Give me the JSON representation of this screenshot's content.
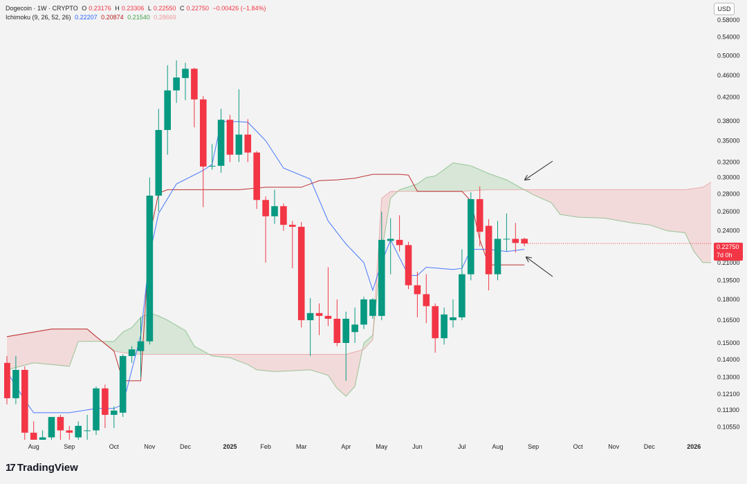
{
  "header": {
    "symbol": "Dogecoin · 1W · CRYPTO",
    "open_label": "O",
    "open": "0.23176",
    "high_label": "H",
    "high": "0.23306",
    "low_label": "L",
    "low": "0.22550",
    "close_label": "C",
    "close": "0.22750",
    "change": "−0.00426 (−1.84%)",
    "indicator_name": "Ichimoku (9, 26, 52, 26)",
    "indicator_values": [
      "0.22207",
      "0.20874",
      "0.21540",
      "0.28669"
    ]
  },
  "currency": "USD",
  "price_label": {
    "price": "0.22750",
    "countdown": "7d 0h"
  },
  "branding": {
    "logo_text": "TradingView",
    "logo_mark": "17"
  },
  "colors": {
    "up": "#089981",
    "down": "#f23645",
    "tenkan": "#2962ff",
    "kijun": "#b71c1c",
    "cloud_bull": "#43a047",
    "cloud_bear": "#ef9a9a"
  },
  "chart_data": {
    "type": "candlestick",
    "timeframe": "1W",
    "y_scale": "log",
    "ylim": [
      0.1,
      0.62
    ],
    "y_ticks": [
      0.58,
      0.54,
      0.5,
      0.46,
      0.42,
      0.38,
      0.35,
      0.32,
      0.3,
      0.28,
      0.26,
      0.24,
      0.21,
      0.195,
      0.18,
      0.165,
      0.15,
      0.14,
      0.13,
      0.121,
      0.1133,
      0.1055
    ],
    "y_tick_labels": [
      "0.58000",
      "0.54000",
      "0.50000",
      "0.46000",
      "0.42000",
      "0.38000",
      "0.35000",
      "0.32000",
      "0.30000",
      "0.28000",
      "0.26000",
      "0.24000",
      "0.21000",
      "0.19500",
      "0.18000",
      "0.16500",
      "0.15000",
      "0.14000",
      "0.13000",
      "0.12100",
      "0.11300",
      "0.10550"
    ],
    "x_ticks": [
      {
        "i": 3,
        "label": "Aug"
      },
      {
        "i": 7,
        "label": "Sep"
      },
      {
        "i": 12,
        "label": "Oct"
      },
      {
        "i": 16,
        "label": "Nov"
      },
      {
        "i": 20,
        "label": "Dec"
      },
      {
        "i": 25,
        "label": "2025",
        "bold": true
      },
      {
        "i": 29,
        "label": "Feb"
      },
      {
        "i": 33,
        "label": "Mar"
      },
      {
        "i": 38,
        "label": "Apr"
      },
      {
        "i": 42,
        "label": "May"
      },
      {
        "i": 46,
        "label": "Jun"
      },
      {
        "i": 51,
        "label": "Jul"
      },
      {
        "i": 55,
        "label": "Aug"
      },
      {
        "i": 59,
        "label": "Sep"
      },
      {
        "i": 64,
        "label": "Oct"
      },
      {
        "i": 68,
        "label": "Nov"
      },
      {
        "i": 72,
        "label": "Dec"
      },
      {
        "i": 77,
        "label": "2026",
        "bold": true
      }
    ],
    "candles": [
      {
        "o": 0.138,
        "h": 0.142,
        "l": 0.116,
        "c": 0.119
      },
      {
        "o": 0.119,
        "h": 0.142,
        "l": 0.116,
        "c": 0.134
      },
      {
        "o": 0.134,
        "h": 0.136,
        "l": 0.098,
        "c": 0.103
      },
      {
        "o": 0.103,
        "h": 0.108,
        "l": 0.09,
        "c": 0.096
      },
      {
        "o": 0.096,
        "h": 0.104,
        "l": 0.089,
        "c": 0.101
      },
      {
        "o": 0.101,
        "h": 0.11,
        "l": 0.098,
        "c": 0.11
      },
      {
        "o": 0.11,
        "h": 0.111,
        "l": 0.1,
        "c": 0.104
      },
      {
        "o": 0.104,
        "h": 0.106,
        "l": 0.099,
        "c": 0.103
      },
      {
        "o": 0.101,
        "h": 0.108,
        "l": 0.098,
        "c": 0.106
      },
      {
        "o": 0.104,
        "h": 0.111,
        "l": 0.1,
        "c": 0.104
      },
      {
        "o": 0.104,
        "h": 0.125,
        "l": 0.102,
        "c": 0.124
      },
      {
        "o": 0.124,
        "h": 0.126,
        "l": 0.105,
        "c": 0.111
      },
      {
        "o": 0.111,
        "h": 0.115,
        "l": 0.105,
        "c": 0.113
      },
      {
        "o": 0.112,
        "h": 0.143,
        "l": 0.11,
        "c": 0.142
      },
      {
        "o": 0.142,
        "h": 0.148,
        "l": 0.138,
        "c": 0.146
      },
      {
        "o": 0.145,
        "h": 0.167,
        "l": 0.13,
        "c": 0.151
      },
      {
        "o": 0.151,
        "h": 0.3,
        "l": 0.149,
        "c": 0.278
      },
      {
        "o": 0.278,
        "h": 0.4,
        "l": 0.26,
        "c": 0.366
      },
      {
        "o": 0.366,
        "h": 0.48,
        "l": 0.33,
        "c": 0.432
      },
      {
        "o": 0.432,
        "h": 0.49,
        "l": 0.41,
        "c": 0.456
      },
      {
        "o": 0.455,
        "h": 0.485,
        "l": 0.415,
        "c": 0.473
      },
      {
        "o": 0.473,
        "h": 0.475,
        "l": 0.37,
        "c": 0.416
      },
      {
        "o": 0.416,
        "h": 0.422,
        "l": 0.265,
        "c": 0.314
      },
      {
        "o": 0.314,
        "h": 0.345,
        "l": 0.31,
        "c": 0.315
      },
      {
        "o": 0.315,
        "h": 0.4,
        "l": 0.306,
        "c": 0.382
      },
      {
        "o": 0.382,
        "h": 0.39,
        "l": 0.32,
        "c": 0.33
      },
      {
        "o": 0.33,
        "h": 0.434,
        "l": 0.32,
        "c": 0.359
      },
      {
        "o": 0.359,
        "h": 0.383,
        "l": 0.32,
        "c": 0.333
      },
      {
        "o": 0.333,
        "h": 0.335,
        "l": 0.263,
        "c": 0.273
      },
      {
        "o": 0.273,
        "h": 0.277,
        "l": 0.21,
        "c": 0.255
      },
      {
        "o": 0.255,
        "h": 0.285,
        "l": 0.247,
        "c": 0.266
      },
      {
        "o": 0.266,
        "h": 0.269,
        "l": 0.24,
        "c": 0.246
      },
      {
        "o": 0.246,
        "h": 0.25,
        "l": 0.205,
        "c": 0.244
      },
      {
        "o": 0.244,
        "h": 0.249,
        "l": 0.16,
        "c": 0.165
      },
      {
        "o": 0.165,
        "h": 0.181,
        "l": 0.142,
        "c": 0.17
      },
      {
        "o": 0.17,
        "h": 0.177,
        "l": 0.155,
        "c": 0.168
      },
      {
        "o": 0.168,
        "h": 0.206,
        "l": 0.161,
        "c": 0.166
      },
      {
        "o": 0.166,
        "h": 0.18,
        "l": 0.148,
        "c": 0.15
      },
      {
        "o": 0.15,
        "h": 0.171,
        "l": 0.128,
        "c": 0.166
      },
      {
        "o": 0.157,
        "h": 0.174,
        "l": 0.15,
        "c": 0.162
      },
      {
        "o": 0.162,
        "h": 0.182,
        "l": 0.159,
        "c": 0.18
      },
      {
        "o": 0.168,
        "h": 0.181,
        "l": 0.166,
        "c": 0.18
      },
      {
        "o": 0.168,
        "h": 0.26,
        "l": 0.165,
        "c": 0.231
      },
      {
        "o": 0.23,
        "h": 0.253,
        "l": 0.2,
        "c": 0.232
      },
      {
        "o": 0.231,
        "h": 0.256,
        "l": 0.22,
        "c": 0.226
      },
      {
        "o": 0.226,
        "h": 0.229,
        "l": 0.188,
        "c": 0.191
      },
      {
        "o": 0.191,
        "h": 0.202,
        "l": 0.167,
        "c": 0.184
      },
      {
        "o": 0.184,
        "h": 0.2,
        "l": 0.163,
        "c": 0.175
      },
      {
        "o": 0.175,
        "h": 0.177,
        "l": 0.144,
        "c": 0.153
      },
      {
        "o": 0.153,
        "h": 0.174,
        "l": 0.149,
        "c": 0.169
      },
      {
        "o": 0.165,
        "h": 0.18,
        "l": 0.16,
        "c": 0.167
      },
      {
        "o": 0.167,
        "h": 0.222,
        "l": 0.165,
        "c": 0.2
      },
      {
        "o": 0.2,
        "h": 0.282,
        "l": 0.195,
        "c": 0.274
      },
      {
        "o": 0.274,
        "h": 0.289,
        "l": 0.225,
        "c": 0.239
      },
      {
        "o": 0.245,
        "h": 0.252,
        "l": 0.187,
        "c": 0.2
      },
      {
        "o": 0.2,
        "h": 0.25,
        "l": 0.195,
        "c": 0.232
      },
      {
        "o": 0.232,
        "h": 0.258,
        "l": 0.22,
        "c": 0.232
      },
      {
        "o": 0.232,
        "h": 0.248,
        "l": 0.219,
        "c": 0.228
      },
      {
        "o": 0.232,
        "h": 0.233,
        "l": 0.225,
        "c": 0.2275
      }
    ],
    "tenkan": [
      [
        0,
        0.133
      ],
      [
        2,
        0.118
      ],
      [
        3,
        0.112
      ],
      [
        7,
        0.112
      ],
      [
        10,
        0.114
      ],
      [
        12,
        0.114
      ],
      [
        13,
        0.116
      ],
      [
        14,
        0.134
      ],
      [
        15,
        0.155
      ],
      [
        16,
        0.217
      ],
      [
        17,
        0.258
      ],
      [
        19,
        0.292
      ],
      [
        22,
        0.309
      ],
      [
        23,
        0.317
      ],
      [
        24,
        0.379
      ],
      [
        26,
        0.379
      ],
      [
        27,
        0.378
      ],
      [
        29,
        0.35
      ],
      [
        31,
        0.312
      ],
      [
        34,
        0.298
      ],
      [
        36,
        0.25
      ],
      [
        38,
        0.227
      ],
      [
        40,
        0.21
      ],
      [
        41,
        0.187
      ],
      [
        42,
        0.21
      ],
      [
        43,
        0.231
      ],
      [
        45,
        0.199
      ],
      [
        46,
        0.199
      ],
      [
        47,
        0.206
      ],
      [
        50,
        0.204
      ],
      [
        51,
        0.205
      ],
      [
        52,
        0.222
      ],
      [
        54,
        0.222
      ],
      [
        56,
        0.22
      ],
      [
        58,
        0.222
      ]
    ],
    "kijun": [
      [
        0,
        0.154
      ],
      [
        5,
        0.159
      ],
      [
        9,
        0.159
      ],
      [
        10,
        0.154
      ],
      [
        12,
        0.145
      ],
      [
        13,
        0.128
      ],
      [
        15,
        0.128
      ],
      [
        16,
        0.235
      ],
      [
        17,
        0.281
      ],
      [
        18,
        0.285
      ],
      [
        24,
        0.285
      ],
      [
        26,
        0.285
      ],
      [
        29,
        0.288
      ],
      [
        33,
        0.288
      ],
      [
        35,
        0.296
      ],
      [
        37,
        0.297
      ],
      [
        39,
        0.299
      ],
      [
        41,
        0.304
      ],
      [
        44,
        0.304
      ],
      [
        45,
        0.303
      ],
      [
        46,
        0.283
      ],
      [
        51,
        0.283
      ],
      [
        52,
        0.272
      ],
      [
        53,
        0.231
      ],
      [
        54,
        0.208
      ],
      [
        58,
        0.208
      ]
    ],
    "span_a": [
      [
        0,
        0.134
      ],
      [
        3,
        0.138
      ],
      [
        7,
        0.136
      ],
      [
        8,
        0.151
      ],
      [
        12,
        0.151
      ],
      [
        13,
        0.157
      ],
      [
        14,
        0.16
      ],
      [
        15,
        0.167
      ],
      [
        16,
        0.17
      ],
      [
        17,
        0.168
      ],
      [
        18,
        0.165
      ],
      [
        20,
        0.158
      ],
      [
        21,
        0.148
      ],
      [
        22,
        0.145
      ],
      [
        23,
        0.142
      ],
      [
        25,
        0.141
      ],
      [
        27,
        0.137
      ],
      [
        28,
        0.134
      ],
      [
        30,
        0.133
      ],
      [
        34,
        0.134
      ],
      [
        36,
        0.131
      ],
      [
        37,
        0.124
      ],
      [
        38,
        0.12
      ],
      [
        39,
        0.125
      ],
      [
        40,
        0.15
      ],
      [
        41,
        0.155
      ],
      [
        42,
        0.22
      ],
      [
        43,
        0.275
      ],
      [
        44,
        0.285
      ],
      [
        46,
        0.292
      ],
      [
        47,
        0.3
      ],
      [
        48,
        0.302
      ],
      [
        49,
        0.31
      ],
      [
        50,
        0.319
      ],
      [
        51,
        0.317
      ],
      [
        52,
        0.315
      ],
      [
        53,
        0.31
      ],
      [
        54,
        0.305
      ],
      [
        56,
        0.297
      ],
      [
        58,
        0.285
      ],
      [
        59,
        0.279
      ],
      [
        61,
        0.27
      ],
      [
        62,
        0.257
      ],
      [
        64,
        0.254
      ],
      [
        67,
        0.253
      ],
      [
        70,
        0.248
      ],
      [
        72,
        0.246
      ],
      [
        74,
        0.24
      ],
      [
        76,
        0.238
      ],
      [
        77,
        0.22
      ],
      [
        78,
        0.21
      ],
      [
        79,
        0.21
      ]
    ],
    "span_b": [
      [
        0,
        0.154
      ],
      [
        5,
        0.159
      ],
      [
        9,
        0.159
      ],
      [
        10,
        0.154
      ],
      [
        12,
        0.145
      ],
      [
        13,
        0.144
      ],
      [
        15,
        0.143
      ],
      [
        18,
        0.143
      ],
      [
        24,
        0.143
      ],
      [
        34,
        0.143
      ],
      [
        38,
        0.143
      ],
      [
        40,
        0.146
      ],
      [
        41,
        0.152
      ],
      [
        42,
        0.275
      ],
      [
        43,
        0.283
      ],
      [
        44,
        0.283
      ],
      [
        50,
        0.283
      ],
      [
        51,
        0.283
      ],
      [
        54,
        0.285
      ],
      [
        58,
        0.285
      ],
      [
        59,
        0.285
      ],
      [
        62,
        0.285
      ],
      [
        64,
        0.285
      ],
      [
        68,
        0.285
      ],
      [
        72,
        0.285
      ],
      [
        76,
        0.285
      ],
      [
        78,
        0.288
      ],
      [
        79,
        0.295
      ]
    ],
    "annotations": [
      "arrow pointing to cloud",
      "arrow pointing to current price"
    ]
  }
}
